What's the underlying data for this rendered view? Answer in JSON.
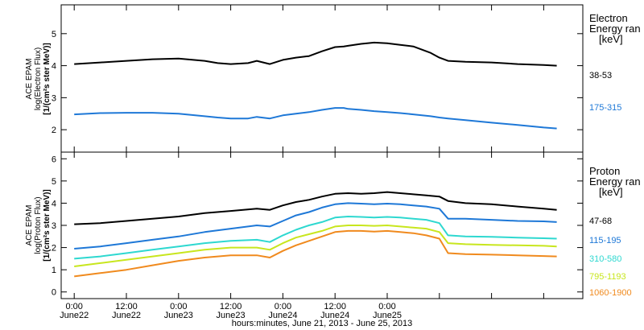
{
  "chart_data": [
    {
      "type": "scatter",
      "panel": "electron",
      "ylabel_lines": [
        "ACE EPAM",
        "log(Electron Flux)",
        "[1/(cm²s ster MeV)]"
      ],
      "ylim": [
        1.3,
        5.9
      ],
      "yticks": [
        2,
        3,
        4,
        5
      ],
      "legend_title": [
        "Electron",
        "Energy ran",
        "[keV]"
      ],
      "series": [
        {
          "name": "38-53",
          "color": "#000000",
          "x": [
            0,
            6,
            12,
            18,
            24,
            30,
            33,
            36,
            40,
            42,
            45,
            48,
            51,
            54,
            57,
            60,
            62,
            63,
            66,
            69,
            72,
            75,
            78,
            82,
            84,
            86,
            90,
            96,
            102,
            108,
            111
          ],
          "y": [
            4.05,
            4.1,
            4.15,
            4.2,
            4.22,
            4.15,
            4.08,
            4.05,
            4.08,
            4.15,
            4.05,
            4.18,
            4.25,
            4.3,
            4.45,
            4.58,
            4.6,
            4.62,
            4.68,
            4.72,
            4.7,
            4.65,
            4.6,
            4.4,
            4.25,
            4.15,
            4.12,
            4.1,
            4.05,
            4.02,
            4.0
          ]
        },
        {
          "name": "175-315",
          "color": "#1e78d7",
          "x": [
            0,
            6,
            12,
            18,
            24,
            30,
            33,
            36,
            40,
            42,
            45,
            48,
            51,
            54,
            57,
            60,
            62,
            63,
            66,
            69,
            72,
            75,
            78,
            82,
            84,
            86,
            90,
            96,
            102,
            108,
            111
          ],
          "y": [
            2.48,
            2.52,
            2.53,
            2.53,
            2.5,
            2.42,
            2.38,
            2.35,
            2.35,
            2.4,
            2.35,
            2.45,
            2.5,
            2.55,
            2.62,
            2.68,
            2.68,
            2.65,
            2.62,
            2.58,
            2.55,
            2.52,
            2.48,
            2.42,
            2.38,
            2.35,
            2.3,
            2.22,
            2.15,
            2.07,
            2.04
          ]
        }
      ]
    },
    {
      "type": "scatter",
      "panel": "proton",
      "ylabel_lines": [
        "ACE EPAM",
        "log(Proton Flux)",
        "[1/(cm²s ster MeV)]"
      ],
      "ylim": [
        -0.3,
        6.3
      ],
      "yticks": [
        0,
        1,
        2,
        3,
        4,
        5,
        6
      ],
      "legend_title": [
        "Proton",
        "Energy ran",
        "[keV]"
      ],
      "series": [
        {
          "name": "47-68",
          "color": "#000000",
          "x": [
            0,
            6,
            12,
            18,
            24,
            30,
            36,
            42,
            45,
            48,
            51,
            54,
            57,
            60,
            63,
            66,
            69,
            72,
            75,
            78,
            81,
            84,
            86,
            90,
            96,
            102,
            108,
            111
          ],
          "y": [
            3.05,
            3.1,
            3.2,
            3.3,
            3.4,
            3.55,
            3.65,
            3.75,
            3.7,
            3.9,
            4.05,
            4.15,
            4.3,
            4.42,
            4.45,
            4.42,
            4.45,
            4.5,
            4.45,
            4.4,
            4.35,
            4.3,
            4.1,
            4.0,
            3.95,
            3.85,
            3.75,
            3.7
          ]
        },
        {
          "name": "115-195",
          "color": "#1e78d7",
          "x": [
            0,
            6,
            12,
            18,
            24,
            30,
            36,
            42,
            45,
            48,
            51,
            54,
            57,
            60,
            63,
            66,
            69,
            72,
            75,
            78,
            81,
            84,
            86,
            90,
            96,
            102,
            108,
            111
          ],
          "y": [
            1.95,
            2.05,
            2.2,
            2.35,
            2.5,
            2.7,
            2.85,
            3.0,
            2.95,
            3.2,
            3.45,
            3.6,
            3.8,
            3.95,
            4.0,
            3.98,
            3.95,
            3.98,
            3.95,
            3.9,
            3.85,
            3.75,
            3.3,
            3.3,
            3.25,
            3.2,
            3.18,
            3.15
          ]
        },
        {
          "name": "310-580",
          "color": "#2ed8d0",
          "x": [
            0,
            6,
            12,
            18,
            24,
            30,
            36,
            42,
            45,
            48,
            51,
            54,
            57,
            60,
            63,
            66,
            69,
            72,
            75,
            78,
            81,
            84,
            86,
            90,
            96,
            102,
            108,
            111
          ],
          "y": [
            1.5,
            1.6,
            1.75,
            1.9,
            2.05,
            2.2,
            2.3,
            2.35,
            2.25,
            2.55,
            2.8,
            3.0,
            3.15,
            3.35,
            3.4,
            3.38,
            3.35,
            3.38,
            3.35,
            3.3,
            3.25,
            3.1,
            2.55,
            2.5,
            2.48,
            2.45,
            2.42,
            2.4
          ]
        },
        {
          "name": "795-1193",
          "color": "#c8e61e",
          "x": [
            0,
            6,
            12,
            18,
            24,
            30,
            36,
            42,
            45,
            48,
            51,
            54,
            57,
            60,
            63,
            66,
            69,
            72,
            75,
            78,
            81,
            84,
            86,
            90,
            96,
            102,
            108,
            111
          ],
          "y": [
            1.15,
            1.3,
            1.45,
            1.6,
            1.75,
            1.9,
            2.0,
            2.0,
            1.9,
            2.2,
            2.45,
            2.6,
            2.75,
            2.95,
            3.0,
            3.0,
            2.98,
            3.0,
            2.95,
            2.9,
            2.85,
            2.7,
            2.2,
            2.15,
            2.12,
            2.1,
            2.08,
            2.05
          ]
        },
        {
          "name": "1060-1900",
          "color": "#f08a1e",
          "x": [
            0,
            6,
            12,
            18,
            24,
            30,
            36,
            42,
            45,
            48,
            51,
            54,
            57,
            60,
            63,
            66,
            69,
            72,
            75,
            78,
            81,
            84,
            86,
            90,
            96,
            102,
            108,
            111
          ],
          "y": [
            0.7,
            0.85,
            1.0,
            1.2,
            1.4,
            1.55,
            1.65,
            1.65,
            1.55,
            1.85,
            2.1,
            2.3,
            2.5,
            2.7,
            2.75,
            2.75,
            2.72,
            2.75,
            2.7,
            2.65,
            2.55,
            2.4,
            1.75,
            1.7,
            1.68,
            1.65,
            1.62,
            1.6
          ]
        }
      ]
    }
  ],
  "x_axis": {
    "range_hours": [
      -3,
      117
    ],
    "tick_hours": [
      0,
      12,
      24,
      36,
      48,
      60,
      72,
      84,
      96,
      108
    ],
    "tick_labels": [
      [
        "0:00",
        "June22"
      ],
      [
        "12:00",
        "June22"
      ],
      [
        "0:00",
        "June23"
      ],
      [
        "12:00",
        "June23"
      ],
      [
        "0:00",
        "June24"
      ],
      [
        "12:00",
        "June24"
      ],
      [
        "0:00",
        "June25"
      ]
    ],
    "label_hours": [
      0,
      12,
      24,
      36,
      48,
      60,
      72
    ],
    "xlabel": "hours:minutes, June 21, 2013 - June 25, 2013"
  }
}
